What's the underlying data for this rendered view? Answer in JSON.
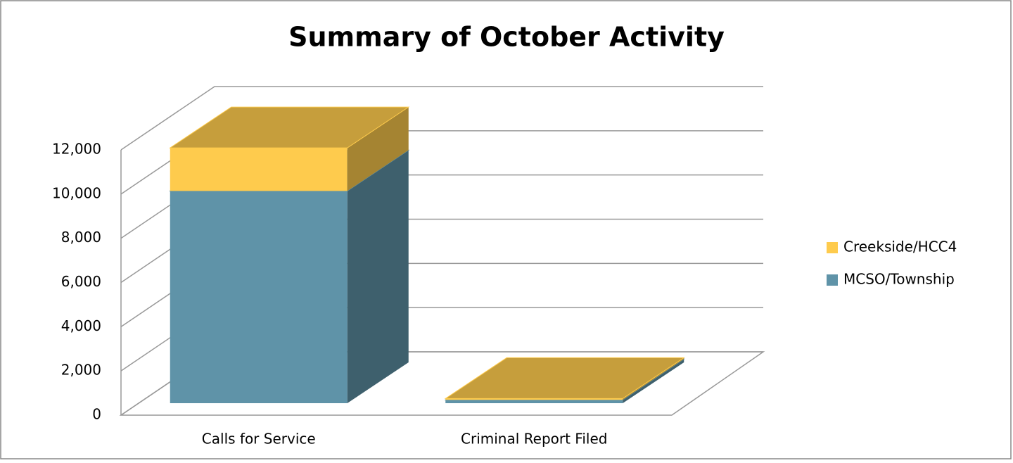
{
  "chart_data": {
    "type": "bar3d_stacked",
    "title": "Summary of October Activity",
    "categories": [
      "Calls for Service",
      "Criminal Report Filed"
    ],
    "series": [
      {
        "name": "MCSO/Township",
        "color": "#5f93a8",
        "values": [
          9600,
          150
        ]
      },
      {
        "name": "Creekside/HCC4",
        "color": "#fecb4d",
        "values": [
          1950,
          60
        ]
      }
    ],
    "ylim": [
      0,
      12000
    ],
    "yticks": [
      0,
      {
        "value": 2000,
        "label": "2,000"
      },
      {
        "value": 4000,
        "label": "4,000"
      },
      {
        "value": 6000,
        "label": "6,000"
      },
      {
        "value": 8000,
        "label": "8,000"
      },
      {
        "value": 10000,
        "label": "10,000"
      },
      {
        "value": 12000,
        "label": "12,000"
      }
    ],
    "grid": true,
    "legend": "right"
  }
}
